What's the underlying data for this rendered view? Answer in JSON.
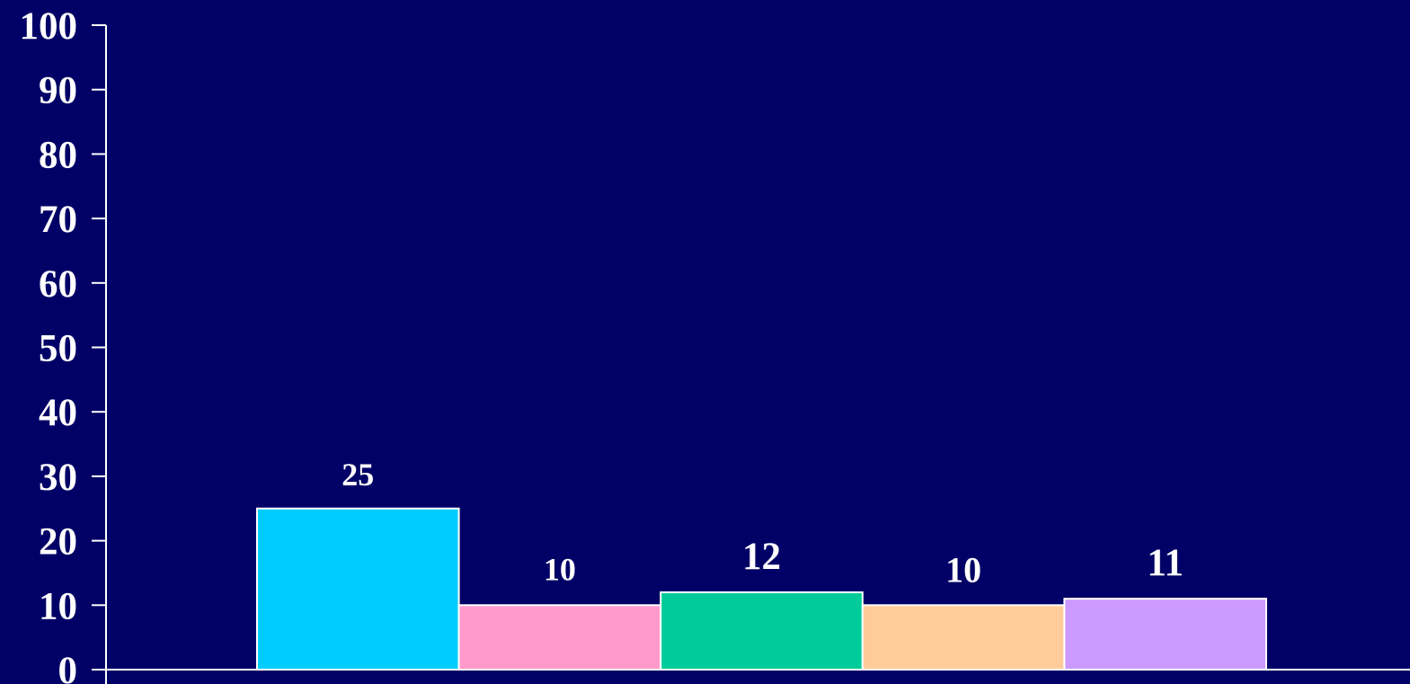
{
  "chart_data": {
    "type": "bar",
    "categories": [
      "",
      "",
      "",
      "",
      ""
    ],
    "values": [
      25,
      10,
      12,
      10,
      11
    ],
    "data_labels": [
      "25",
      "10",
      "12",
      "10",
      "11"
    ],
    "bar_colors": [
      "#00CCFF",
      "#FF99CC",
      "#00CC99",
      "#FFCC99",
      "#CC99FF"
    ],
    "title": "",
    "xlabel": "",
    "ylabel": "",
    "ylim": [
      0,
      100
    ],
    "yticks": [
      0,
      10,
      20,
      30,
      40,
      50,
      60,
      70,
      80,
      90,
      100
    ],
    "ytick_labels": [
      "0",
      "10",
      "20",
      "30",
      "40",
      "50",
      "60",
      "70",
      "80",
      "90",
      "100"
    ],
    "grid": false,
    "legend": "none",
    "background_color": "#000066",
    "axis_color": "#FFFFFF",
    "bar_border_color": "#FFFFFF"
  }
}
